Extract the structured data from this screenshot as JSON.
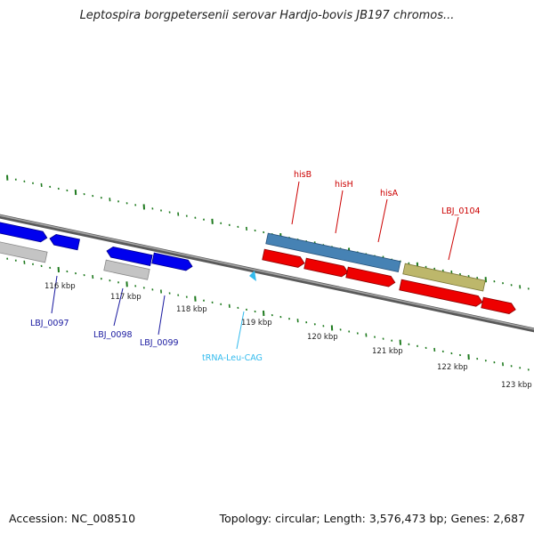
{
  "title": "Leptospira borgpetersenii serovar Hardjo-bovis JB197 chromos...",
  "footer": {
    "accession": "Accession: NC_008510",
    "summary": "Topology: circular; Length: 3,576,473 bp; Genes: 2,687"
  },
  "colors": {
    "backbone": "#808080",
    "tick": "#1e7a1e",
    "forward_gene": "#0000ee",
    "reverse_gene": "#ee0000",
    "pseudo_gene": "#c0c0c0",
    "operon_blue": "#4682b4",
    "operon_khaki": "#bdb76b",
    "trna": "#33bbee",
    "label_blue": "#1a1aa0",
    "label_red": "#cc0000"
  },
  "kbp_labels": [
    "116 kbp",
    "117 kbp",
    "118 kbp",
    "119 kbp",
    "120 kbp",
    "121 kbp",
    "122 kbp",
    "123 kbp"
  ],
  "gene_labels": {
    "lbj0097": "LBJ_0097",
    "lbj0098": "LBJ_0098",
    "lbj0099": "LBJ_0099",
    "trna": "tRNA-Leu-CAG",
    "hisB": "hisB",
    "hisH": "hisH",
    "hisA": "hisA",
    "lbj0104": "LBJ_0104"
  }
}
